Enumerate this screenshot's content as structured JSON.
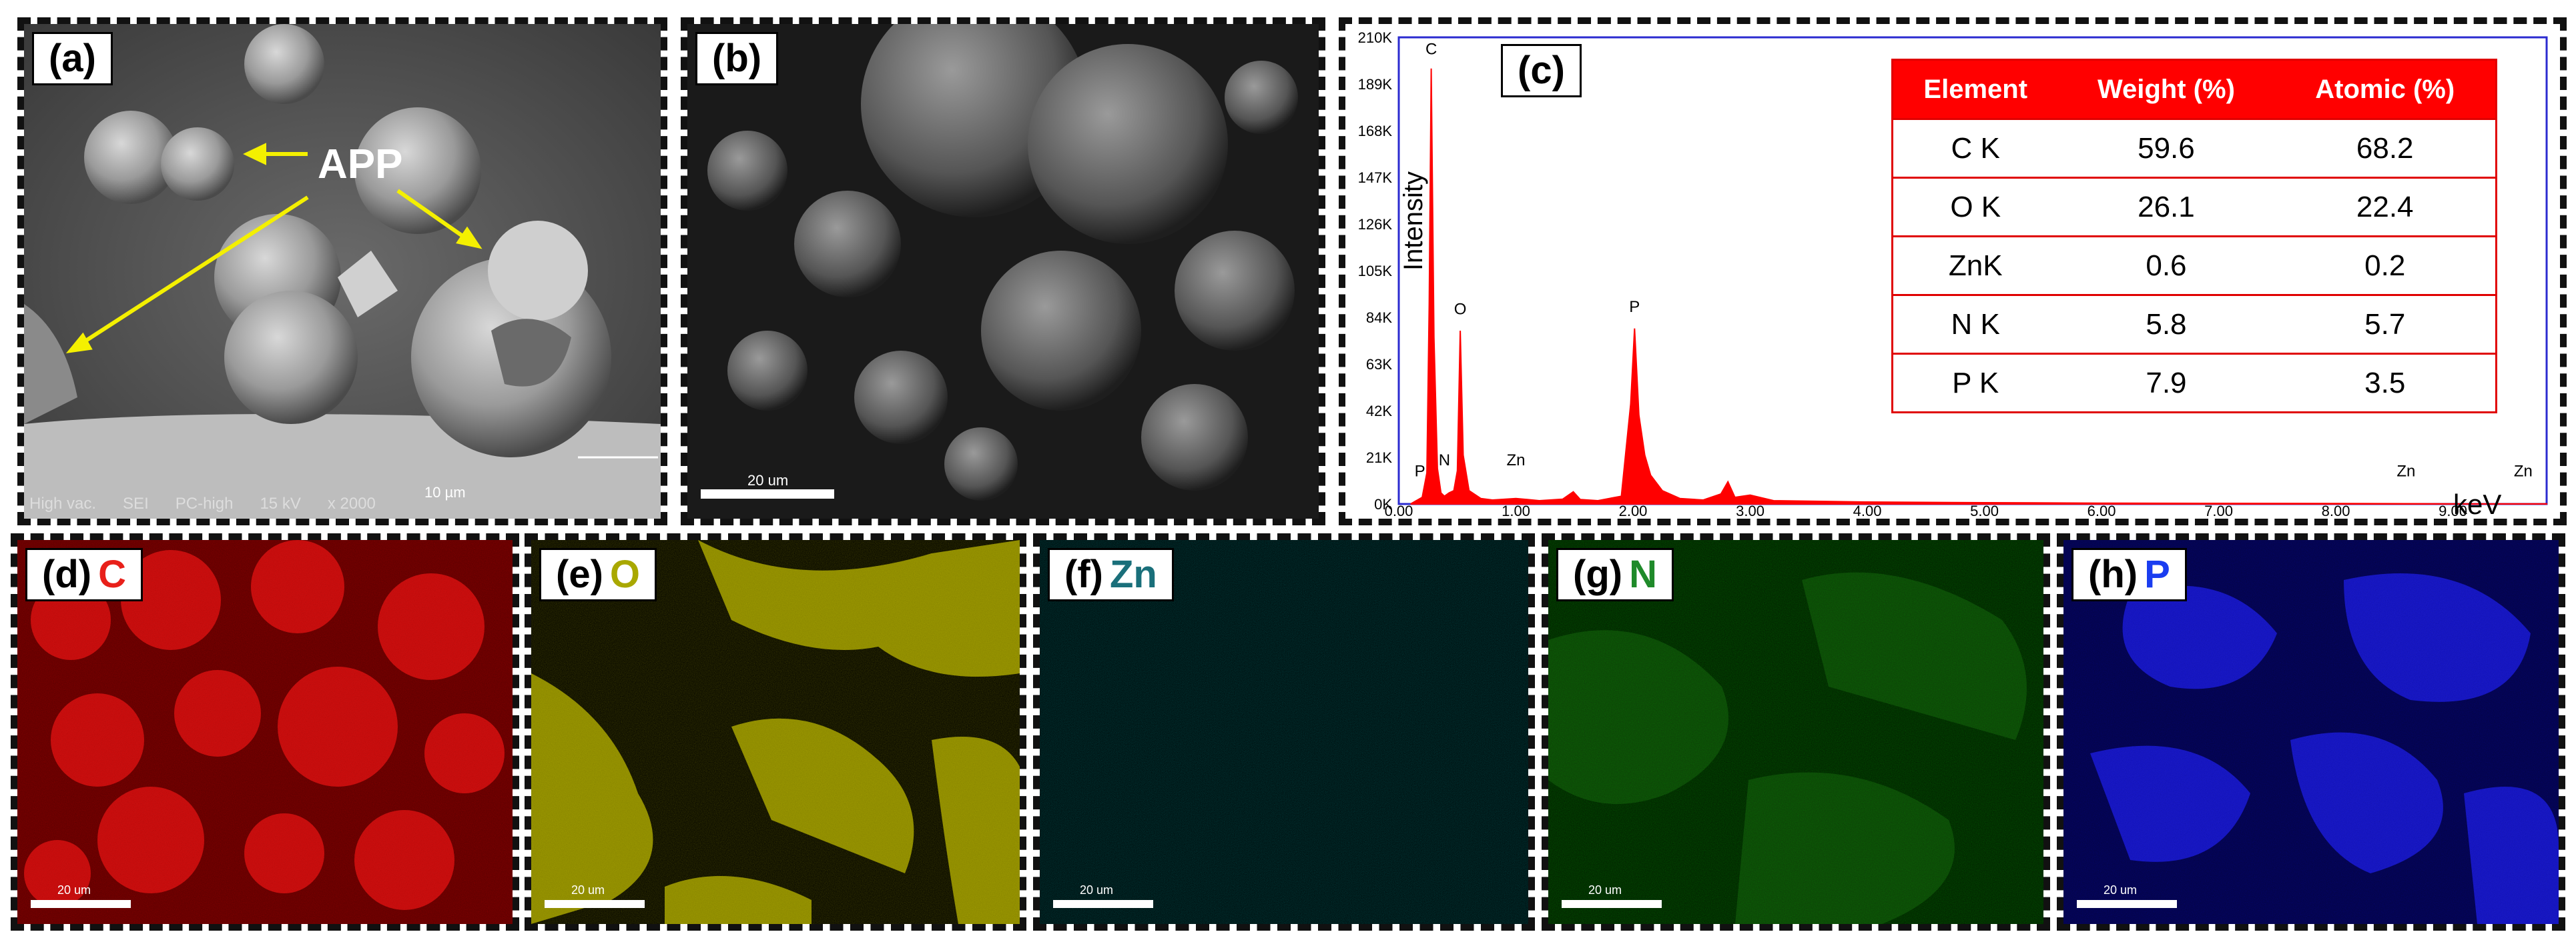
{
  "panels": {
    "a": {
      "label": "(a)",
      "annotation": "APP",
      "status": [
        "High vac.",
        "SEI",
        "PC-high",
        "15 kV",
        "x 2000"
      ],
      "scale": "10 µm"
    },
    "b": {
      "label": "(b)",
      "scale": "20 um"
    },
    "c": {
      "label": "(c)"
    },
    "d": {
      "label": "(d)",
      "element": "C",
      "color": "#e8201a",
      "scale": "20 um"
    },
    "e": {
      "label": "(e)",
      "element": "O",
      "color": "#a9a800",
      "scale": "20 um"
    },
    "f": {
      "label": "(f)",
      "element": "Zn",
      "color": "#1a6f7a",
      "scale": "20 um"
    },
    "g": {
      "label": "(g)",
      "element": "N",
      "color": "#1f8a2a",
      "scale": "20 um"
    },
    "h": {
      "label": "(h)",
      "element": "P",
      "color": "#1a3df0",
      "scale": "20 um"
    }
  },
  "table": {
    "headers": [
      "Element",
      "Weight (%)",
      "Atomic (%)"
    ],
    "rows": [
      [
        "C K",
        "59.6",
        "68.2"
      ],
      [
        "O K",
        "26.1",
        "22.4"
      ],
      [
        "ZnK",
        "0.6",
        "0.2"
      ],
      [
        "N K",
        "5.8",
        "5.7"
      ],
      [
        "P K",
        "7.9",
        "3.5"
      ]
    ]
  },
  "chart_data": {
    "type": "area",
    "xlabel": "keV",
    "ylabel": "Intensity",
    "xlim": [
      0,
      9.8
    ],
    "ylim": [
      0,
      210000
    ],
    "x_ticks": [
      "0.00",
      "1.00",
      "2.00",
      "3.00",
      "4.00",
      "5.00",
      "6.00",
      "7.00",
      "8.00",
      "9.00"
    ],
    "y_ticks": [
      "0K",
      "21K",
      "42K",
      "63K",
      "84K",
      "105K",
      "126K",
      "147K",
      "168K",
      "189K",
      "210K"
    ],
    "x": [
      0.1,
      0.15,
      0.2,
      0.24,
      0.26,
      0.277,
      0.3,
      0.33,
      0.36,
      0.39,
      0.43,
      0.47,
      0.5,
      0.525,
      0.55,
      0.6,
      0.7,
      0.8,
      1.0,
      1.2,
      1.4,
      1.49,
      1.55,
      1.7,
      1.9,
      1.98,
      2.013,
      2.05,
      2.1,
      2.15,
      2.25,
      2.4,
      2.6,
      2.75,
      2.81,
      2.87,
      3.0,
      3.2,
      3.6,
      4.0,
      5.0,
      6.0,
      7.0,
      8.0,
      8.6,
      9.0,
      9.8
    ],
    "values": [
      0,
      1500,
      3000,
      14000,
      90000,
      196000,
      75000,
      16000,
      5000,
      3500,
      5000,
      6000,
      15000,
      78000,
      22000,
      6000,
      2500,
      1800,
      2500,
      1500,
      2200,
      5500,
      2000,
      1500,
      3500,
      45000,
      79000,
      40000,
      22000,
      13000,
      6000,
      2500,
      1800,
      4500,
      10000,
      3000,
      4000,
      1500,
      1200,
      900,
      600,
      400,
      300,
      200,
      150,
      100,
      50
    ],
    "annotations": [
      {
        "text": "C",
        "x": 0.277,
        "y": 200000
      },
      {
        "text": "O",
        "x": 0.525,
        "y": 83000
      },
      {
        "text": "P",
        "x": 2.013,
        "y": 84000
      },
      {
        "text": "P",
        "x": 0.18,
        "y": 10000
      },
      {
        "text": "N",
        "x": 0.39,
        "y": 15000
      },
      {
        "text": "Zn",
        "x": 1.0,
        "y": 15000
      },
      {
        "text": "Zn",
        "x": 8.6,
        "y": 10000
      },
      {
        "text": "Zn",
        "x": 9.6,
        "y": 10000
      }
    ],
    "fill_color": "#ff0000",
    "grid": false
  }
}
